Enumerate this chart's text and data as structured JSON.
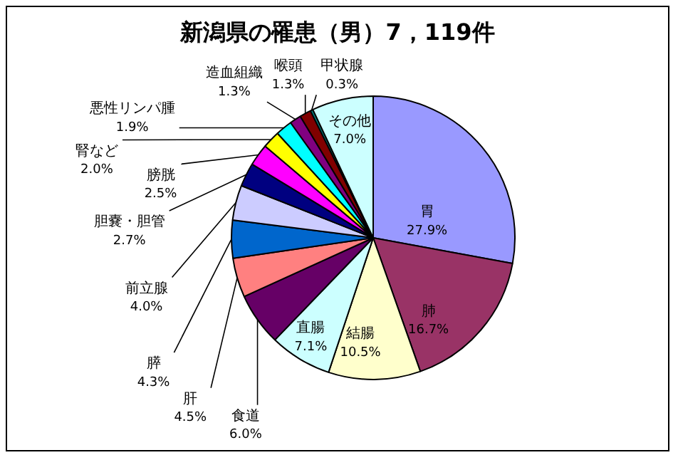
{
  "chart_data": {
    "type": "pie",
    "title": "新潟県の罹患（男）7，119件",
    "categories": [
      "胃",
      "肺",
      "結腸",
      "直腸",
      "食道",
      "肝",
      "膵",
      "前立腺",
      "胆嚢・胆管",
      "膀胱",
      "腎など",
      "悪性リンパ腫",
      "造血組織",
      "喉頭",
      "甲状腺",
      "その他"
    ],
    "values": [
      27.9,
      16.7,
      10.5,
      7.1,
      6.0,
      4.5,
      4.3,
      4.0,
      2.7,
      2.5,
      2.0,
      1.9,
      1.3,
      1.3,
      0.3,
      7.0
    ],
    "value_labels": [
      "27.9%",
      "16.7%",
      "10.5%",
      "7.1%",
      "6.0%",
      "4.5%",
      "4.3%",
      "4.0%",
      "2.7%",
      "2.5%",
      "2.0%",
      "1.9%",
      "1.3%",
      "1.3%",
      "0.3%",
      "7.0%"
    ],
    "colors": [
      "#9999ff",
      "#993366",
      "#ffffcc",
      "#ccffff",
      "#660066",
      "#ff8080",
      "#0066cc",
      "#ccccff",
      "#000080",
      "#ff00ff",
      "#ffff00",
      "#00ffff",
      "#800080",
      "#800000",
      "#008080",
      "#ccffff"
    ],
    "legend": false
  }
}
